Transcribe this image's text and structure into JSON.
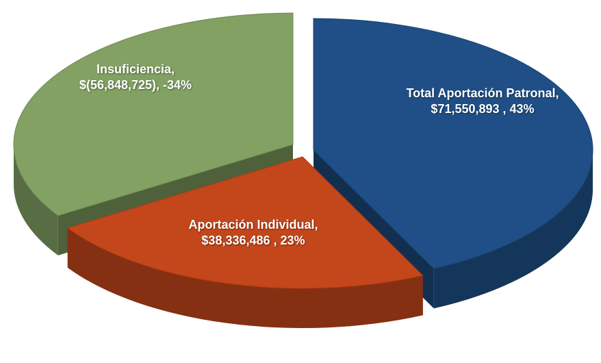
{
  "chart_data": {
    "type": "pie",
    "categories": [
      "Total Aportación Patronal,",
      "Aportación Individual,",
      "Insuficiencia,"
    ],
    "values": [
      71550893,
      38336486,
      -56848725
    ],
    "value_labels": [
      "$71,550,893 , 43%",
      "$38,336,486 , 23%",
      "$(56,848,725), -34%"
    ],
    "colors": [
      "#1f4f86",
      "#c4461b",
      "#82a163"
    ]
  }
}
